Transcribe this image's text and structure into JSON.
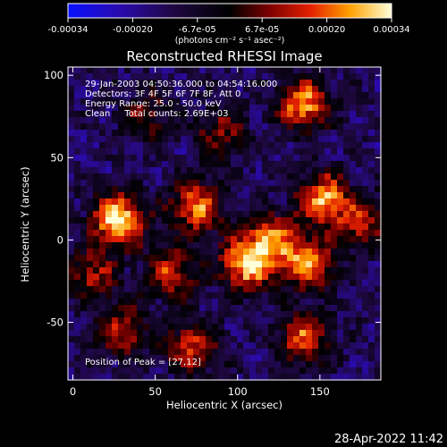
{
  "colorbar": {
    "ticks": [
      "-0.00034",
      "-0.00020",
      "-6.7e-05",
      "6.7e-05",
      "0.00020",
      "0.00034"
    ],
    "units": "(photons cm⁻² s⁻¹ asec⁻²)",
    "range": [
      -0.00034,
      0.00034
    ]
  },
  "chart_data": {
    "type": "heatmap",
    "title": "Reconstructed RHESSI Image",
    "xlabel": "Heliocentric X (arcsec)",
    "ylabel": "Heliocentric Y (arcsec)",
    "xlim": [
      -3,
      187
    ],
    "ylim": [
      -85,
      105
    ],
    "xticks": [
      "0",
      "50",
      "100",
      "150"
    ],
    "yticks": [
      "100",
      "50",
      "0",
      "-50"
    ],
    "xtick_values": [
      0,
      50,
      100,
      150
    ],
    "ytick_values": [
      100,
      50,
      0,
      -50
    ],
    "annotations": [
      "29-Jan-2003 04:50:36.000 to 04:54:16.000",
      "Detectors: 3F 4F 5F 6F 7F 8F, Att 0",
      "Energy Range: 25.0 - 50.0 keV",
      "Clean     Total counts: 2.69E+03"
    ],
    "peak_label": "Position of Peak = [27,12]",
    "peak_position": [
      27,
      12
    ],
    "sources": [
      {
        "x": 27,
        "y": 12,
        "intensity": 1.0
      },
      {
        "x": 140,
        "y": 83,
        "intensity": 0.8
      },
      {
        "x": 105,
        "y": -15,
        "intensity": 0.85
      },
      {
        "x": 152,
        "y": 25,
        "intensity": 0.8
      },
      {
        "x": 75,
        "y": 20,
        "intensity": 0.75
      },
      {
        "x": 120,
        "y": 0,
        "intensity": 0.7
      },
      {
        "x": 143,
        "y": -15,
        "intensity": 0.75
      },
      {
        "x": 60,
        "y": -20,
        "intensity": 0.6
      },
      {
        "x": 12,
        "y": -22,
        "intensity": 0.5
      },
      {
        "x": 30,
        "y": -55,
        "intensity": 0.55
      },
      {
        "x": 72,
        "y": -65,
        "intensity": 0.6
      },
      {
        "x": 140,
        "y": -60,
        "intensity": 0.65
      },
      {
        "x": 175,
        "y": 10,
        "intensity": 0.55
      },
      {
        "x": 90,
        "y": 65,
        "intensity": 0.45
      },
      {
        "x": 45,
        "y": 75,
        "intensity": 0.4
      }
    ]
  },
  "timestamp": "28-Apr-2022 11:42"
}
